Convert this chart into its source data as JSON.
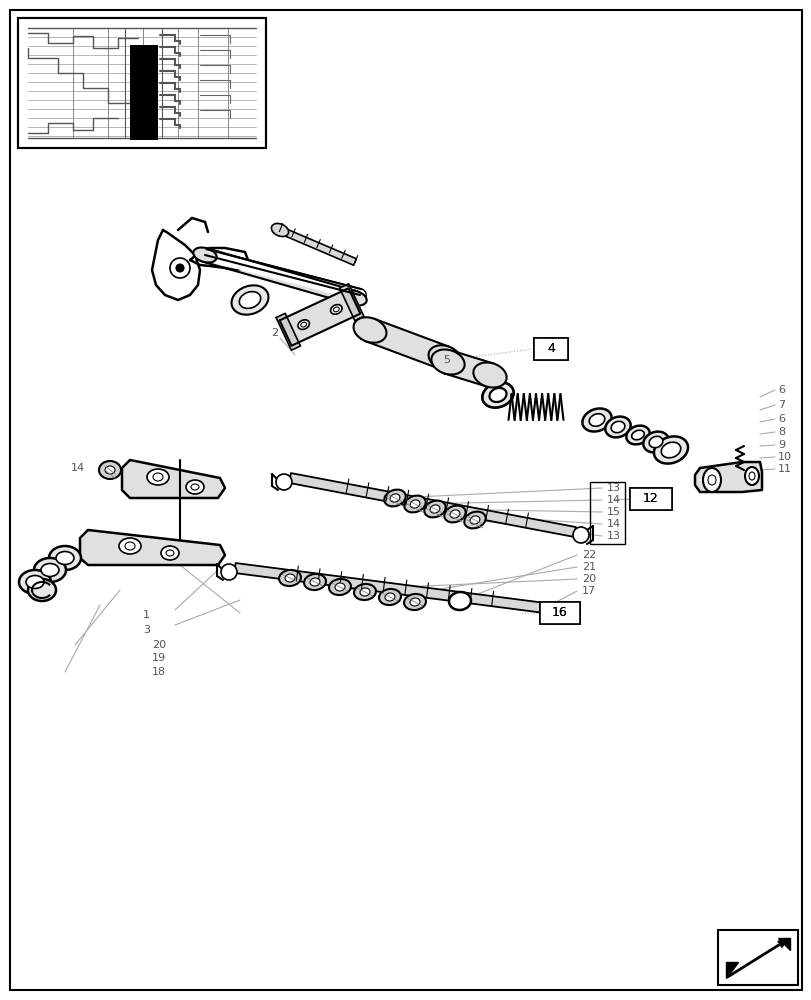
{
  "bg_color": "#ffffff",
  "lc": "#000000",
  "gray": "#aaaaaa",
  "dgray": "#888888",
  "fig_width": 8.12,
  "fig_height": 10.0
}
